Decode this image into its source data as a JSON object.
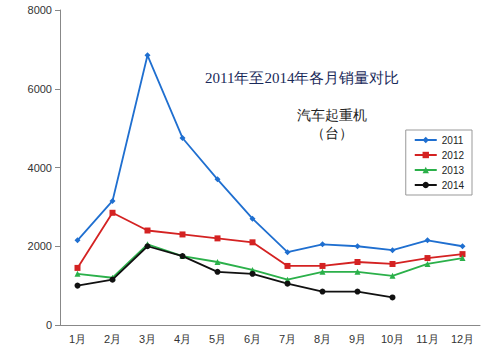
{
  "chart_data": {
    "type": "line",
    "title": "2011年至2014年各月销量对比",
    "subtitle": "汽车起重机（台）",
    "categories": [
      "1月",
      "2月",
      "3月",
      "4月",
      "5月",
      "6月",
      "7月",
      "8月",
      "9月",
      "10月",
      "11月",
      "12月"
    ],
    "series": [
      {
        "name": "2011",
        "color": "#1f6fd0",
        "marker": "diamond",
        "values": [
          2150,
          3150,
          6850,
          4750,
          3700,
          2700,
          1850,
          2050,
          2000,
          1900,
          2150,
          2000
        ]
      },
      {
        "name": "2012",
        "color": "#d42222",
        "marker": "square",
        "values": [
          1450,
          2850,
          2400,
          2300,
          2200,
          2100,
          1500,
          1500,
          1600,
          1550,
          1700,
          1800
        ]
      },
      {
        "name": "2013",
        "color": "#2bb04a",
        "marker": "triangle",
        "values": [
          1300,
          1200,
          2050,
          1750,
          1600,
          1400,
          1150,
          1350,
          1350,
          1250,
          1550,
          1700
        ]
      },
      {
        "name": "2014",
        "color": "#111111",
        "marker": "circle",
        "values": [
          1000,
          1150,
          2000,
          1750,
          1350,
          1300,
          1050,
          850,
          850,
          700,
          null,
          null
        ]
      }
    ],
    "ylim": [
      0,
      8000
    ],
    "yticks": [
      0,
      2000,
      4000,
      6000,
      8000
    ],
    "grid": false,
    "legend": "right"
  }
}
